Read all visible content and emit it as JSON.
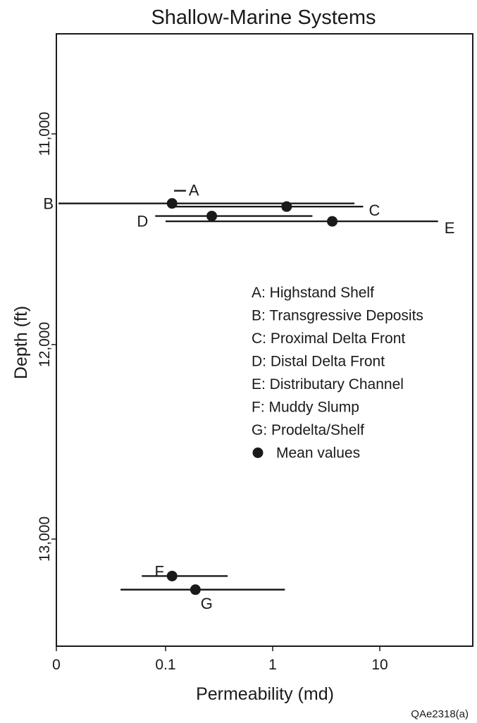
{
  "chart_data": {
    "type": "scatter",
    "title": "Shallow-Marine Systems",
    "xlabel": "Permeability (md)",
    "ylabel": "Depth (ft)",
    "x_scale": "log",
    "y_inverted": true,
    "x_ticks": [
      {
        "value": 0,
        "label": "0"
      },
      {
        "value": 0.1,
        "label": "0.1"
      },
      {
        "value": 1,
        "label": "1"
      },
      {
        "value": 10,
        "label": "10"
      }
    ],
    "y_ticks": [
      {
        "value": 11000,
        "label": "11,000"
      },
      {
        "value": 12000,
        "label": "12,000"
      },
      {
        "value": 13000,
        "label": "13,000"
      }
    ],
    "y_range": [
      10600,
      13500
    ],
    "grid": false,
    "legend_position": "right-middle",
    "series": [
      {
        "id": "A",
        "x_low": 0.12,
        "x_high": 0.155,
        "depth": 11270,
        "mean": null
      },
      {
        "id": "B",
        "x_low": 0.01,
        "x_high": 5.8,
        "depth": 11330,
        "mean": 0.115
      },
      {
        "id": "C",
        "x_low": 0.115,
        "x_high": 7.0,
        "depth": 11345,
        "mean": 1.35
      },
      {
        "id": "D",
        "x_low": 0.08,
        "x_high": 2.35,
        "depth": 11390,
        "mean": 0.27
      },
      {
        "id": "E",
        "x_low": 0.1,
        "x_high": 35,
        "depth": 11415,
        "mean": 3.6
      },
      {
        "id": "F",
        "x_low": 0.06,
        "x_high": 0.38,
        "depth": 13190,
        "mean": 0.115
      },
      {
        "id": "G",
        "x_low": 0.038,
        "x_high": 1.3,
        "depth": 13260,
        "mean": 0.19
      }
    ],
    "legend": [
      {
        "marker": "A",
        "text": "A: Highstand Shelf"
      },
      {
        "marker": "B",
        "text": "B: Transgressive Deposits"
      },
      {
        "marker": "C",
        "text": "C: Proximal Delta Front"
      },
      {
        "marker": "D",
        "text": "D: Distal Delta Front"
      },
      {
        "marker": "E",
        "text": "E: Distributary Channel"
      },
      {
        "marker": "F",
        "text": "F: Muddy Slump"
      },
      {
        "marker": "G",
        "text": "G: Prodelta/Shelf"
      },
      {
        "marker": "dot",
        "text": "Mean values"
      }
    ],
    "figure_id": "QAe2318(a)",
    "colors": {
      "ink": "#1a1a1a",
      "background": "#ffffff"
    }
  }
}
